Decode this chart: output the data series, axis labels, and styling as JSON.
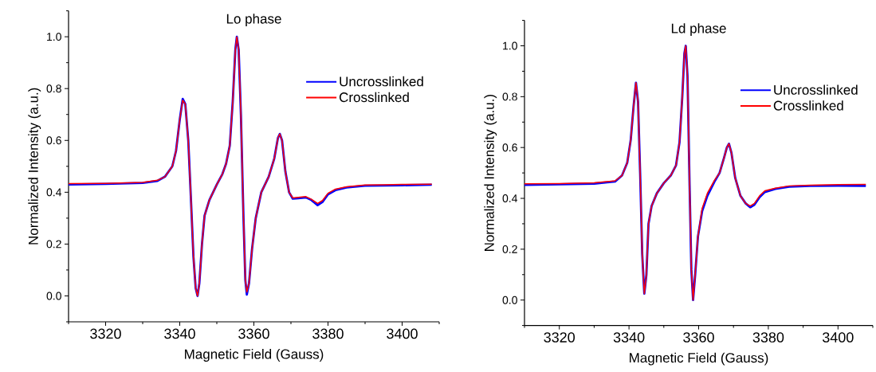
{
  "chart_data": [
    {
      "type": "line",
      "title": "Lo phase",
      "xlabel": "Magnetic Field (Gauss)",
      "ylabel": "Normalized Intensity (a.u.)",
      "x": [
        3310,
        3320,
        3330,
        3334,
        3336,
        3338,
        3339,
        3340,
        3340.8,
        3341.5,
        3342.3,
        3343,
        3343.7,
        3344.3,
        3344.8,
        3345.3,
        3346,
        3346.7,
        3348,
        3350,
        3351.5,
        3352.5,
        3353.5,
        3354.3,
        3355,
        3355.4,
        3355.9,
        3356.5,
        3357.2,
        3357.7,
        3358.1,
        3358.7,
        3359.5,
        3360.5,
        3362,
        3364,
        3365.5,
        3366.5,
        3367,
        3367.6,
        3368.5,
        3369.5,
        3370.5,
        3372,
        3374,
        3375.5,
        3377.2,
        3378.5,
        3380,
        3382,
        3385,
        3390,
        3395,
        3400,
        3408
      ],
      "series": [
        {
          "name": "Uncrosslinked",
          "color": "#0000ff",
          "values": [
            0.43,
            0.432,
            0.436,
            0.444,
            0.46,
            0.5,
            0.56,
            0.68,
            0.76,
            0.74,
            0.6,
            0.38,
            0.15,
            0.03,
            0.0,
            0.05,
            0.2,
            0.31,
            0.37,
            0.43,
            0.47,
            0.51,
            0.58,
            0.75,
            0.95,
            1.0,
            0.95,
            0.7,
            0.3,
            0.06,
            0.005,
            0.05,
            0.18,
            0.3,
            0.4,
            0.46,
            0.53,
            0.61,
            0.625,
            0.6,
            0.48,
            0.4,
            0.375,
            0.377,
            0.38,
            0.37,
            0.35,
            0.362,
            0.392,
            0.408,
            0.418,
            0.425,
            0.426,
            0.427,
            0.429
          ]
        },
        {
          "name": "Crosslinked",
          "color": "#ff0000",
          "values": [
            0.433,
            0.434,
            0.438,
            0.446,
            0.46,
            0.5,
            0.56,
            0.68,
            0.755,
            0.74,
            0.6,
            0.38,
            0.15,
            0.03,
            0.0,
            0.05,
            0.2,
            0.31,
            0.37,
            0.43,
            0.47,
            0.51,
            0.58,
            0.75,
            0.95,
            1.0,
            0.95,
            0.7,
            0.3,
            0.06,
            0.015,
            0.05,
            0.18,
            0.3,
            0.4,
            0.46,
            0.53,
            0.61,
            0.625,
            0.6,
            0.48,
            0.4,
            0.378,
            0.38,
            0.383,
            0.373,
            0.357,
            0.368,
            0.396,
            0.412,
            0.421,
            0.428,
            0.429,
            0.43,
            0.431
          ]
        }
      ],
      "xlim": [
        3310,
        3410
      ],
      "ylim": [
        -0.1,
        1.1
      ],
      "xticks": [
        3320,
        3340,
        3360,
        3380,
        3400,
        {
          "value": 3310,
          "label": null
        },
        {
          "value": 3330,
          "label": null
        },
        {
          "value": 3350,
          "label": null
        },
        {
          "value": 3370,
          "label": null
        },
        {
          "value": 3390,
          "label": null
        },
        {
          "value": 3410,
          "label": null
        }
      ],
      "yticks": [
        {
          "value": 0,
          "label": "0.0"
        },
        0.2,
        0.4,
        0.6,
        0.8,
        {
          "value": 1,
          "label": "1.0"
        },
        {
          "value": -0.1,
          "label": null
        },
        {
          "value": 0.1,
          "label": null
        },
        {
          "value": 0.3,
          "label": null
        },
        {
          "value": 0.5,
          "label": null
        },
        {
          "value": 0.7,
          "label": null
        },
        {
          "value": 0.9,
          "label": null
        },
        {
          "value": 1.1,
          "label": null
        }
      ],
      "legend": "top right"
    },
    {
      "type": "line",
      "title": "Ld phase",
      "xlabel": "Magnetic Field (Gauss)",
      "ylabel": "Normalized Intensity (a.u.)",
      "x": [
        3310,
        3320,
        3330,
        3336,
        3338,
        3339.5,
        3340.5,
        3341.3,
        3342,
        3342.6,
        3343.2,
        3343.8,
        3344.4,
        3345,
        3345.6,
        3346.5,
        3348,
        3350,
        3352,
        3353.5,
        3354.5,
        3355.3,
        3355.9,
        3356.3,
        3356.8,
        3357.4,
        3357.9,
        3358.4,
        3359,
        3359.8,
        3361,
        3362.5,
        3364.5,
        3366,
        3367.3,
        3368.1,
        3368.7,
        3369.4,
        3370.5,
        3372,
        3373.5,
        3374.8,
        3376,
        3377.5,
        3379,
        3382,
        3386,
        3392,
        3400,
        3408
      ],
      "series": [
        {
          "name": "Uncrosslinked",
          "color": "#0000ff",
          "values": [
            0.453,
            0.455,
            0.458,
            0.466,
            0.49,
            0.54,
            0.63,
            0.76,
            0.855,
            0.78,
            0.5,
            0.18,
            0.025,
            0.1,
            0.3,
            0.37,
            0.42,
            0.46,
            0.49,
            0.53,
            0.62,
            0.8,
            0.97,
            1.0,
            0.88,
            0.45,
            0.12,
            0.0,
            0.1,
            0.25,
            0.35,
            0.41,
            0.465,
            0.5,
            0.56,
            0.6,
            0.615,
            0.58,
            0.48,
            0.41,
            0.38,
            0.365,
            0.375,
            0.405,
            0.425,
            0.437,
            0.446,
            0.449,
            0.45,
            0.449
          ]
        },
        {
          "name": "Crosslinked",
          "color": "#ff0000",
          "values": [
            0.457,
            0.458,
            0.461,
            0.469,
            0.49,
            0.54,
            0.63,
            0.76,
            0.855,
            0.78,
            0.5,
            0.18,
            0.025,
            0.1,
            0.3,
            0.37,
            0.42,
            0.46,
            0.49,
            0.53,
            0.62,
            0.8,
            0.97,
            1.0,
            0.88,
            0.45,
            0.12,
            0.0,
            0.1,
            0.25,
            0.36,
            0.42,
            0.47,
            0.5,
            0.56,
            0.6,
            0.615,
            0.58,
            0.48,
            0.41,
            0.38,
            0.37,
            0.38,
            0.41,
            0.43,
            0.44,
            0.449,
            0.452,
            0.454,
            0.455
          ]
        }
      ],
      "xlim": [
        3310,
        3410
      ],
      "ylim": [
        -0.1,
        1.1
      ],
      "xticks": [
        3320,
        3340,
        3360,
        3380,
        3400,
        {
          "value": 3310,
          "label": null
        },
        {
          "value": 3330,
          "label": null
        },
        {
          "value": 3350,
          "label": null
        },
        {
          "value": 3370,
          "label": null
        },
        {
          "value": 3390,
          "label": null
        },
        {
          "value": 3410,
          "label": null
        }
      ],
      "yticks": [
        {
          "value": 0,
          "label": "0.0"
        },
        0.2,
        0.4,
        0.6,
        0.8,
        {
          "value": 1,
          "label": "1.0"
        },
        {
          "value": -0.1,
          "label": null
        },
        {
          "value": 0.1,
          "label": null
        },
        {
          "value": 0.3,
          "label": null
        },
        {
          "value": 0.5,
          "label": null
        },
        {
          "value": 0.7,
          "label": null
        },
        {
          "value": 0.9,
          "label": null
        },
        {
          "value": 1.1,
          "label": null
        }
      ],
      "legend": "top right"
    }
  ]
}
